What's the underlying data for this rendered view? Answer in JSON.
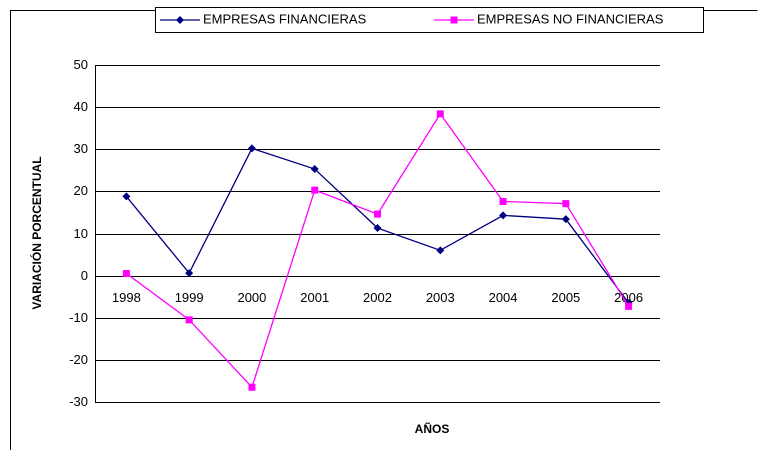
{
  "chart_data": {
    "type": "line",
    "xlabel": "AÑOS",
    "ylabel": "VARIACIÓN PORCENTUAL",
    "categories": [
      "1998",
      "1999",
      "2000",
      "2001",
      "2002",
      "2003",
      "2004",
      "2005",
      "2006"
    ],
    "series": [
      {
        "name": "EMPRESAS FINANCIERAS",
        "color": "#000080",
        "marker": "diamond",
        "values": [
          18.8,
          0.6,
          30.2,
          25.3,
          11.3,
          6.0,
          14.3,
          13.4,
          -6.5
        ]
      },
      {
        "name": "EMPRESAS NO FINANCIERAS",
        "color": "#ff00ff",
        "marker": "square",
        "values": [
          0.5,
          -10.5,
          -26.5,
          20.3,
          14.6,
          38.4,
          17.6,
          17.1,
          -7.3
        ]
      }
    ],
    "ylim": [
      -30,
      50
    ],
    "yticks": [
      -30,
      -20,
      -10,
      0,
      10,
      20,
      30,
      40,
      50
    ],
    "grid": true,
    "legend": "top"
  }
}
